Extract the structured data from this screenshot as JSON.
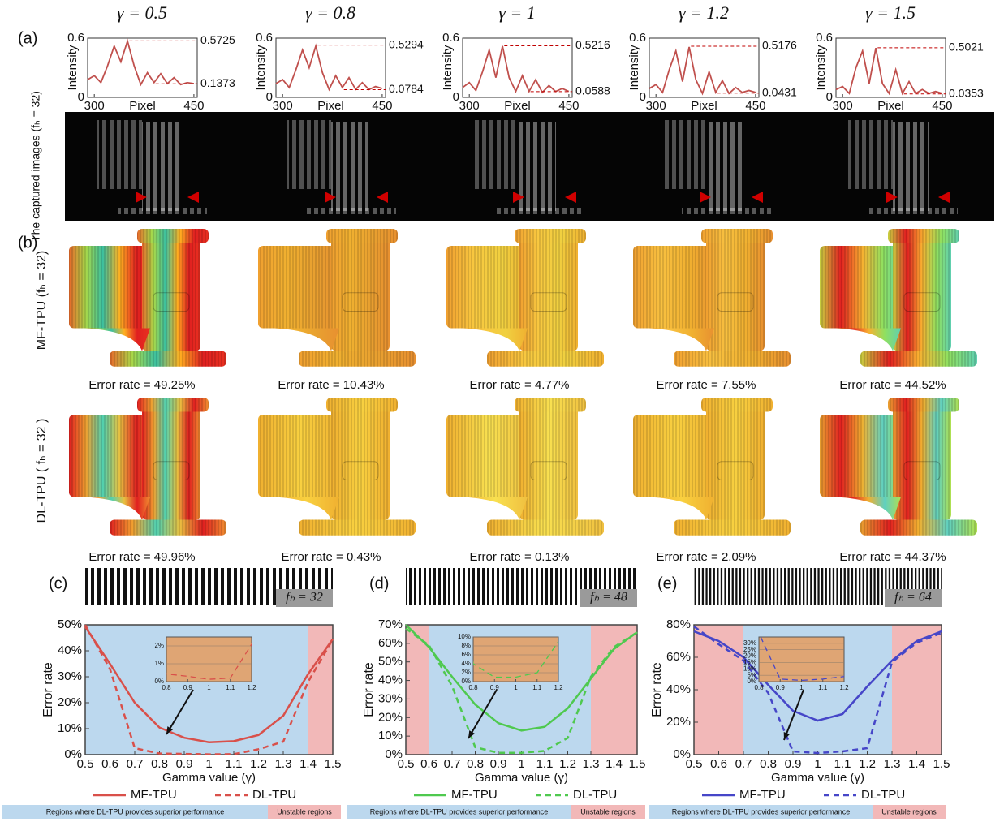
{
  "panel_labels": [
    "(a)",
    "(b)"
  ],
  "row_labels": {
    "captured": "The captured images (fₕ = 32)",
    "mf": "MF-TPU (fₕ = 32)",
    "dl": "DL-TPU ( fₕ = 32 )"
  },
  "error_rates": {
    "mf": [
      "Error rate = 49.25%",
      "Error rate = 10.43%",
      "Error rate = 4.77%",
      "Error rate = 7.55%",
      "Error rate = 44.52%"
    ],
    "dl": [
      "Error rate = 49.96%",
      "Error rate = 0.43%",
      "Error rate = 0.13%",
      "Error rate = 2.09%",
      "Error rate = 44.37%"
    ]
  },
  "chart_data": [
    {
      "type": "line",
      "title": "γ = 0.5",
      "xlabel": "Pixel",
      "ylabel": "Intensity",
      "x": [
        290,
        300,
        310,
        320,
        330,
        340,
        350,
        360,
        370,
        380,
        390,
        400,
        410,
        420,
        430,
        440,
        450
      ],
      "series": [
        {
          "color": "#c0504d",
          "values": [
            0.18,
            0.22,
            0.15,
            0.32,
            0.52,
            0.36,
            0.57,
            0.32,
            0.13,
            0.25,
            0.15,
            0.24,
            0.14,
            0.2,
            0.13,
            0.15,
            0.14
          ]
        }
      ],
      "xlim": [
        290,
        455
      ],
      "xticks": [
        300,
        450
      ],
      "ylim": [
        0,
        0.6
      ],
      "yticks": [
        0,
        0.6
      ],
      "reference_lines": [
        0.5725,
        0.1373
      ],
      "reference_color": "#c00000"
    },
    {
      "type": "line",
      "title": "γ = 0.8",
      "xlabel": "Pixel",
      "ylabel": "Intensity",
      "x": [
        290,
        300,
        310,
        320,
        330,
        340,
        350,
        360,
        370,
        380,
        390,
        400,
        410,
        420,
        430,
        440,
        450
      ],
      "series": [
        {
          "color": "#c0504d",
          "values": [
            0.14,
            0.18,
            0.1,
            0.28,
            0.48,
            0.3,
            0.52,
            0.25,
            0.08,
            0.22,
            0.1,
            0.2,
            0.08,
            0.15,
            0.08,
            0.11,
            0.09
          ]
        }
      ],
      "xlim": [
        290,
        455
      ],
      "xticks": [
        300,
        450
      ],
      "ylim": [
        0,
        0.6
      ],
      "yticks": [
        0,
        0.6
      ],
      "reference_lines": [
        0.5294,
        0.0784
      ],
      "reference_color": "#c00000"
    },
    {
      "type": "line",
      "title": "γ = 1",
      "xlabel": "Pixel",
      "ylabel": "Intensity",
      "x": [
        290,
        300,
        310,
        320,
        330,
        340,
        350,
        360,
        370,
        380,
        390,
        400,
        410,
        420,
        430,
        440,
        450
      ],
      "series": [
        {
          "color": "#c0504d",
          "values": [
            0.1,
            0.15,
            0.07,
            0.26,
            0.48,
            0.2,
            0.52,
            0.2,
            0.06,
            0.22,
            0.06,
            0.18,
            0.05,
            0.12,
            0.06,
            0.09,
            0.06
          ]
        }
      ],
      "xlim": [
        290,
        455
      ],
      "xticks": [
        300,
        450
      ],
      "ylim": [
        0,
        0.6
      ],
      "yticks": [
        0,
        0.6
      ],
      "reference_lines": [
        0.5216,
        0.0588
      ],
      "reference_color": "#c00000"
    },
    {
      "type": "line",
      "title": "γ = 1.2",
      "xlabel": "Pixel",
      "ylabel": "Intensity",
      "x": [
        290,
        300,
        310,
        320,
        330,
        340,
        350,
        360,
        370,
        380,
        390,
        400,
        410,
        420,
        430,
        440,
        450
      ],
      "series": [
        {
          "color": "#c0504d",
          "values": [
            0.09,
            0.13,
            0.05,
            0.28,
            0.47,
            0.16,
            0.51,
            0.18,
            0.04,
            0.26,
            0.05,
            0.17,
            0.04,
            0.1,
            0.05,
            0.07,
            0.05
          ]
        }
      ],
      "xlim": [
        290,
        455
      ],
      "xticks": [
        300,
        450
      ],
      "ylim": [
        0,
        0.6
      ],
      "yticks": [
        0,
        0.6
      ],
      "reference_lines": [
        0.5176,
        0.0431
      ],
      "reference_color": "#c00000"
    },
    {
      "type": "line",
      "title": "γ = 1.5",
      "xlabel": "Pixel",
      "ylabel": "Intensity",
      "x": [
        290,
        300,
        310,
        320,
        330,
        340,
        350,
        360,
        370,
        380,
        390,
        400,
        410,
        420,
        430,
        440,
        450
      ],
      "series": [
        {
          "color": "#c0504d",
          "values": [
            0.08,
            0.11,
            0.04,
            0.3,
            0.47,
            0.14,
            0.5,
            0.14,
            0.04,
            0.28,
            0.04,
            0.16,
            0.04,
            0.08,
            0.04,
            0.06,
            0.04
          ]
        }
      ],
      "xlim": [
        290,
        455
      ],
      "xticks": [
        300,
        450
      ],
      "ylim": [
        0,
        0.6
      ],
      "yticks": [
        0,
        0.6
      ],
      "reference_lines": [
        0.5021,
        0.0353
      ],
      "reference_color": "#c00000"
    },
    {
      "type": "error",
      "panel": "(c)",
      "stripe_label": "fₕ = 32",
      "xlabel": "Gamma value (γ)",
      "ylabel": "Error rate",
      "x": [
        0.5,
        0.6,
        0.7,
        0.8,
        0.9,
        1,
        1.1,
        1.2,
        1.3,
        1.4,
        1.5
      ],
      "xlim": [
        0.5,
        1.5
      ],
      "xticks": [
        0.5,
        0.6,
        0.7,
        0.8,
        0.9,
        1,
        1.1,
        1.2,
        1.3,
        1.4,
        1.5
      ],
      "ylim": [
        0,
        50
      ],
      "yticks": [
        {
          "value": 0,
          "label": "0%"
        },
        {
          "value": 10,
          "label": "10%"
        },
        {
          "value": 20,
          "label": "20%"
        },
        {
          "value": 30,
          "label": "30%"
        },
        {
          "value": 40,
          "label": "40%"
        },
        {
          "value": 50,
          "label": "50%"
        }
      ],
      "series": [
        {
          "name": "MF-TPU",
          "color": "#d9504a",
          "dashed": false,
          "values": [
            49.25,
            35,
            20,
            10.43,
            6.5,
            4.77,
            5.2,
            7.55,
            15,
            31,
            44.52
          ]
        },
        {
          "name": "DL-TPU",
          "color": "#d9504a",
          "dashed": true,
          "values": [
            49.96,
            33,
            2.5,
            0.43,
            0.3,
            0.13,
            0.2,
            2.09,
            5,
            28,
            44.37
          ]
        }
      ],
      "regions": [
        {
          "start": 0.5,
          "end": 1.4,
          "color": "#bcd8ee"
        },
        {
          "start": 1.4,
          "end": 1.5,
          "color": "#f2b8b8"
        }
      ],
      "region_labels": [
        "Regions where DL-TPU provides superior performance",
        "Unstable regions"
      ],
      "inset": {
        "xlim": [
          0.8,
          1.2
        ],
        "xticks": [
          0.8,
          0.9,
          1,
          1.1,
          1.2
        ],
        "ylim": [
          0,
          2.5
        ],
        "yticks": [
          {
            "value": 0,
            "label": "0%"
          },
          {
            "value": 1,
            "label": "1%"
          },
          {
            "value": 2,
            "label": "2%"
          }
        ],
        "background": "#dfa574"
      }
    },
    {
      "type": "error",
      "panel": "(d)",
      "stripe_label": "fₕ = 48",
      "xlabel": "Gamma value (γ)",
      "ylabel": "Error rate",
      "x": [
        0.5,
        0.6,
        0.7,
        0.8,
        0.9,
        1,
        1.1,
        1.2,
        1.3,
        1.4,
        1.5
      ],
      "xlim": [
        0.5,
        1.5
      ],
      "xticks": [
        0.5,
        0.6,
        0.7,
        0.8,
        0.9,
        1,
        1.1,
        1.2,
        1.3,
        1.4,
        1.5
      ],
      "ylim": [
        0,
        70
      ],
      "yticks": [
        {
          "value": 0,
          "label": "0%"
        },
        {
          "value": 10,
          "label": "10%"
        },
        {
          "value": 20,
          "label": "20%"
        },
        {
          "value": 30,
          "label": "30%"
        },
        {
          "value": 40,
          "label": "40%"
        },
        {
          "value": 50,
          "label": "50%"
        },
        {
          "value": 60,
          "label": "60%"
        },
        {
          "value": 70,
          "label": "70%"
        }
      ],
      "series": [
        {
          "name": "MF-TPU",
          "color": "#4fc94f",
          "dashed": false,
          "values": [
            70,
            58,
            42,
            27,
            17,
            13,
            15,
            25,
            41,
            57,
            66
          ]
        },
        {
          "name": "DL-TPU",
          "color": "#4fc94f",
          "dashed": true,
          "values": [
            68,
            59,
            37,
            4,
            1,
            1,
            2,
            9,
            42,
            58,
            66
          ]
        }
      ],
      "regions": [
        {
          "start": 0.5,
          "end": 0.6,
          "color": "#f2b8b8"
        },
        {
          "start": 0.6,
          "end": 1.3,
          "color": "#bcd8ee"
        },
        {
          "start": 1.3,
          "end": 1.5,
          "color": "#f2b8b8"
        }
      ],
      "region_labels": [
        "Regions where DL-TPU provides superior performance",
        "Unstable regions"
      ],
      "inset": {
        "xlim": [
          0.8,
          1.2
        ],
        "xticks": [
          0.8,
          0.9,
          1,
          1.1,
          1.2
        ],
        "ylim": [
          0,
          10
        ],
        "yticks": [
          {
            "value": 0,
            "label": "0%"
          },
          {
            "value": 2,
            "label": "2%"
          },
          {
            "value": 4,
            "label": "4%"
          },
          {
            "value": 6,
            "label": "6%"
          },
          {
            "value": 8,
            "label": "8%"
          },
          {
            "value": 10,
            "label": "10%"
          }
        ],
        "background": "#dfa574"
      }
    },
    {
      "type": "error",
      "panel": "(e)",
      "stripe_label": "fₕ = 64",
      "xlabel": "Gamma value (γ)",
      "ylabel": "Error rate",
      "x": [
        0.5,
        0.6,
        0.7,
        0.8,
        0.9,
        1,
        1.1,
        1.2,
        1.3,
        1.4,
        1.5
      ],
      "xlim": [
        0.5,
        1.5
      ],
      "xticks": [
        0.5,
        0.6,
        0.7,
        0.8,
        0.9,
        1,
        1.1,
        1.2,
        1.3,
        1.4,
        1.5
      ],
      "ylim": [
        0,
        80
      ],
      "yticks": [
        {
          "value": 0,
          "label": "0%"
        },
        {
          "value": 20,
          "label": "20%"
        },
        {
          "value": 40,
          "label": "40%"
        },
        {
          "value": 60,
          "label": "60%"
        },
        {
          "value": 80,
          "label": "80%"
        }
      ],
      "series": [
        {
          "name": "MF-TPU",
          "color": "#4646c8",
          "dashed": false,
          "values": [
            76,
            70,
            60,
            43,
            27,
            21,
            25,
            42,
            58,
            70,
            76
          ]
        },
        {
          "name": "DL-TPU",
          "color": "#4646c8",
          "dashed": true,
          "values": [
            79,
            68,
            58,
            38,
            2,
            1,
            2,
            4,
            57,
            69,
            75
          ]
        }
      ],
      "regions": [
        {
          "start": 0.5,
          "end": 0.7,
          "color": "#f2b8b8"
        },
        {
          "start": 0.7,
          "end": 1.3,
          "color": "#bcd8ee"
        },
        {
          "start": 1.3,
          "end": 1.5,
          "color": "#f2b8b8"
        }
      ],
      "region_labels": [
        "Regions where DL-TPU provides superior performance",
        "Unstable regions"
      ],
      "inset": {
        "xlim": [
          0.8,
          1.2
        ],
        "xticks": [
          0.8,
          0.9,
          1,
          1.1,
          1.2
        ],
        "ylim": [
          0,
          35
        ],
        "yticks": [
          {
            "value": 0,
            "label": "0%"
          },
          {
            "value": 5,
            "label": "5%"
          },
          {
            "value": 10,
            "label": "10%"
          },
          {
            "value": 15,
            "label": "15%"
          },
          {
            "value": 20,
            "label": "20%"
          },
          {
            "value": 25,
            "label": "25%"
          },
          {
            "value": 30,
            "label": "30%"
          }
        ],
        "background": "#dfa574"
      }
    }
  ]
}
